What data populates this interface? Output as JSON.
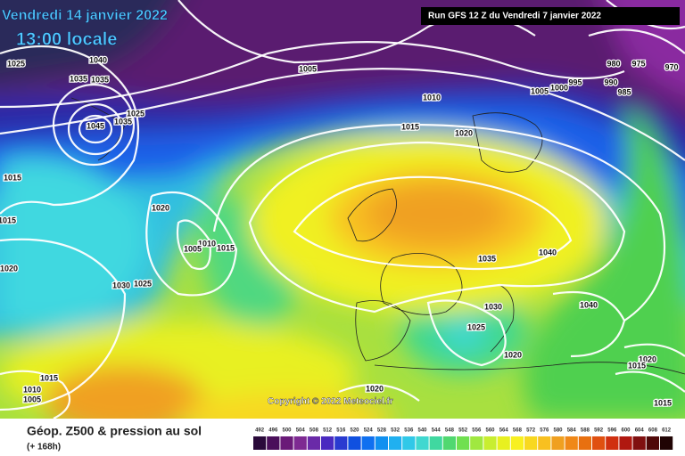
{
  "header": {
    "valid_date": "Vendredi 14 janvier 2022",
    "valid_time": "13:00 locale",
    "run": "Run GFS 12 Z du Vendredi 7 janvier 2022"
  },
  "copyright": "Copyright © 2022 Meteociel.fr",
  "footer": {
    "title": "Géop. Z500 & pression au sol",
    "lead": "(+ 168h)"
  },
  "isobar_labels": [
    "1025",
    "1040",
    "1035",
    "1035",
    "1045",
    "1025",
    "1035",
    "1005",
    "1010",
    "1015",
    "1020",
    "1005",
    "1000",
    "995",
    "990",
    "980",
    "975",
    "970",
    "985",
    "1015",
    "1015",
    "1020",
    "1020",
    "1010",
    "1005",
    "1015",
    "1030",
    "1025",
    "1035",
    "1040",
    "1030",
    "1040",
    "1025",
    "1020",
    "1020",
    "1015",
    "1015",
    "1010",
    "1005",
    "1020",
    "1015"
  ],
  "scale": {
    "labels": [
      492,
      496,
      500,
      504,
      508,
      512,
      516,
      520,
      524,
      528,
      532,
      536,
      540,
      544,
      548,
      552,
      556,
      560,
      564,
      568,
      572,
      576,
      580,
      584,
      588,
      592,
      596,
      600,
      604,
      608,
      612
    ],
    "colors": [
      "#2a0a3a",
      "#4a0f5a",
      "#6a1a78",
      "#7e2a92",
      "#6a2aa8",
      "#4a2ac0",
      "#2a3ad0",
      "#1050e0",
      "#1070f0",
      "#1090f0",
      "#20b0f0",
      "#30c8e8",
      "#40d8d0",
      "#40d8a0",
      "#50d870",
      "#70e050",
      "#a0e840",
      "#c8ee30",
      "#e8f020",
      "#f8f020",
      "#f8d820",
      "#f8c020",
      "#f0a020",
      "#f08818",
      "#e87010",
      "#e05010",
      "#d03010",
      "#b01810",
      "#801010",
      "#500808",
      "#200404"
    ]
  }
}
